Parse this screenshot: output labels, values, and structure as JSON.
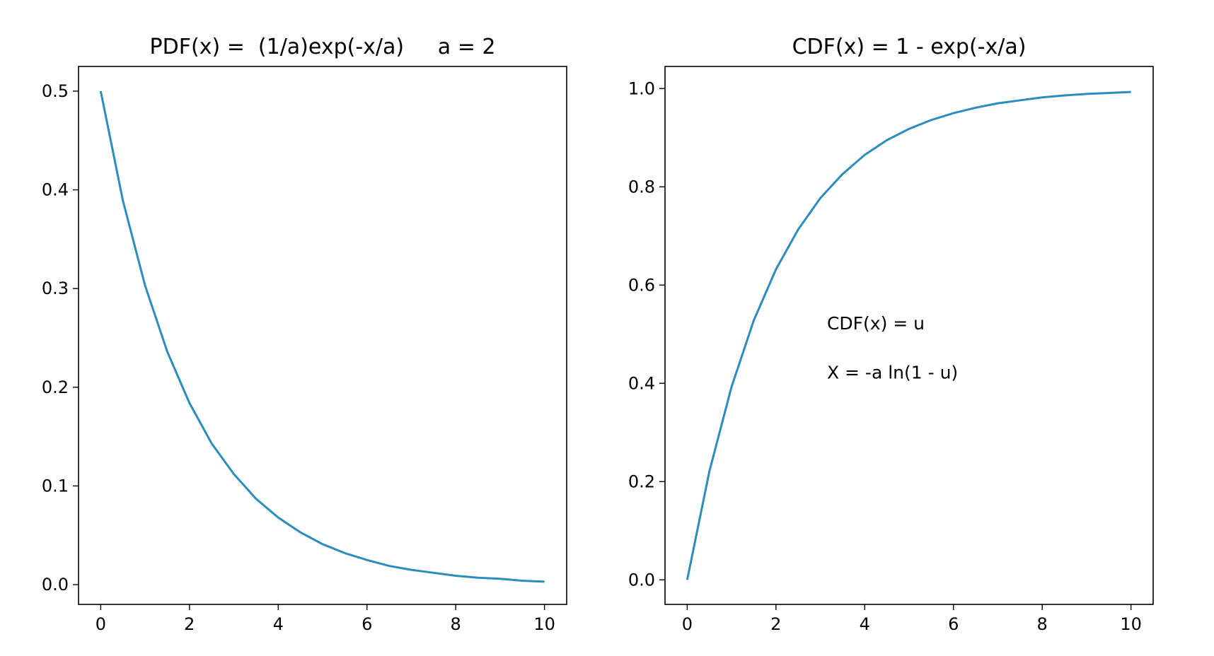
{
  "chart_data": [
    {
      "type": "line",
      "title": "PDF(x) =  (1/a)exp(-x/a)     a = 2",
      "xlabel": "",
      "ylabel": "",
      "xlim": [
        -0.5,
        10.5
      ],
      "ylim": [
        -0.02,
        0.525
      ],
      "x_ticks": [
        "0",
        "2",
        "4",
        "6",
        "8",
        "10"
      ],
      "y_ticks": [
        "0.0",
        "0.1",
        "0.2",
        "0.3",
        "0.4",
        "0.5"
      ],
      "grid": false,
      "legend": "none",
      "annotations": [],
      "series": [
        {
          "color": "#2b8cbe",
          "x": [
            0,
            0.5,
            1,
            1.5,
            2,
            2.5,
            3,
            3.5,
            4,
            4.5,
            5,
            5.5,
            6,
            6.5,
            7,
            7.5,
            8,
            8.5,
            9,
            9.5,
            10
          ],
          "y": [
            0.5,
            0.389,
            0.303,
            0.236,
            0.184,
            0.143,
            0.112,
            0.087,
            0.068,
            0.053,
            0.041,
            0.032,
            0.025,
            0.019,
            0.015,
            0.012,
            0.009,
            0.007,
            0.006,
            0.004,
            0.003
          ]
        }
      ]
    },
    {
      "type": "line",
      "title": "CDF(x) = 1 - exp(-x/a)",
      "xlabel": "",
      "ylabel": "",
      "xlim": [
        -0.5,
        10.5
      ],
      "ylim": [
        -0.05,
        1.045
      ],
      "x_ticks": [
        "0",
        "2",
        "4",
        "6",
        "8",
        "10"
      ],
      "y_ticks": [
        "0.0",
        "0.2",
        "0.4",
        "0.6",
        "0.8",
        "1.0"
      ],
      "grid": false,
      "legend": "none",
      "annotations": [
        {
          "text": "CDF(x) = u",
          "x": 3.15,
          "y": 0.51
        },
        {
          "text": "X = -a ln(1 - u)",
          "x": 3.15,
          "y": 0.41
        }
      ],
      "series": [
        {
          "color": "#2b8cbe",
          "x": [
            0,
            0.5,
            1,
            1.5,
            2,
            2.5,
            3,
            3.5,
            4,
            4.5,
            5,
            5.5,
            6,
            6.5,
            7,
            7.5,
            8,
            8.5,
            9,
            9.5,
            10
          ],
          "y": [
            0,
            0.221,
            0.393,
            0.528,
            0.632,
            0.713,
            0.777,
            0.826,
            0.865,
            0.895,
            0.918,
            0.936,
            0.95,
            0.961,
            0.97,
            0.976,
            0.982,
            0.986,
            0.989,
            0.991,
            0.993
          ]
        }
      ]
    }
  ]
}
